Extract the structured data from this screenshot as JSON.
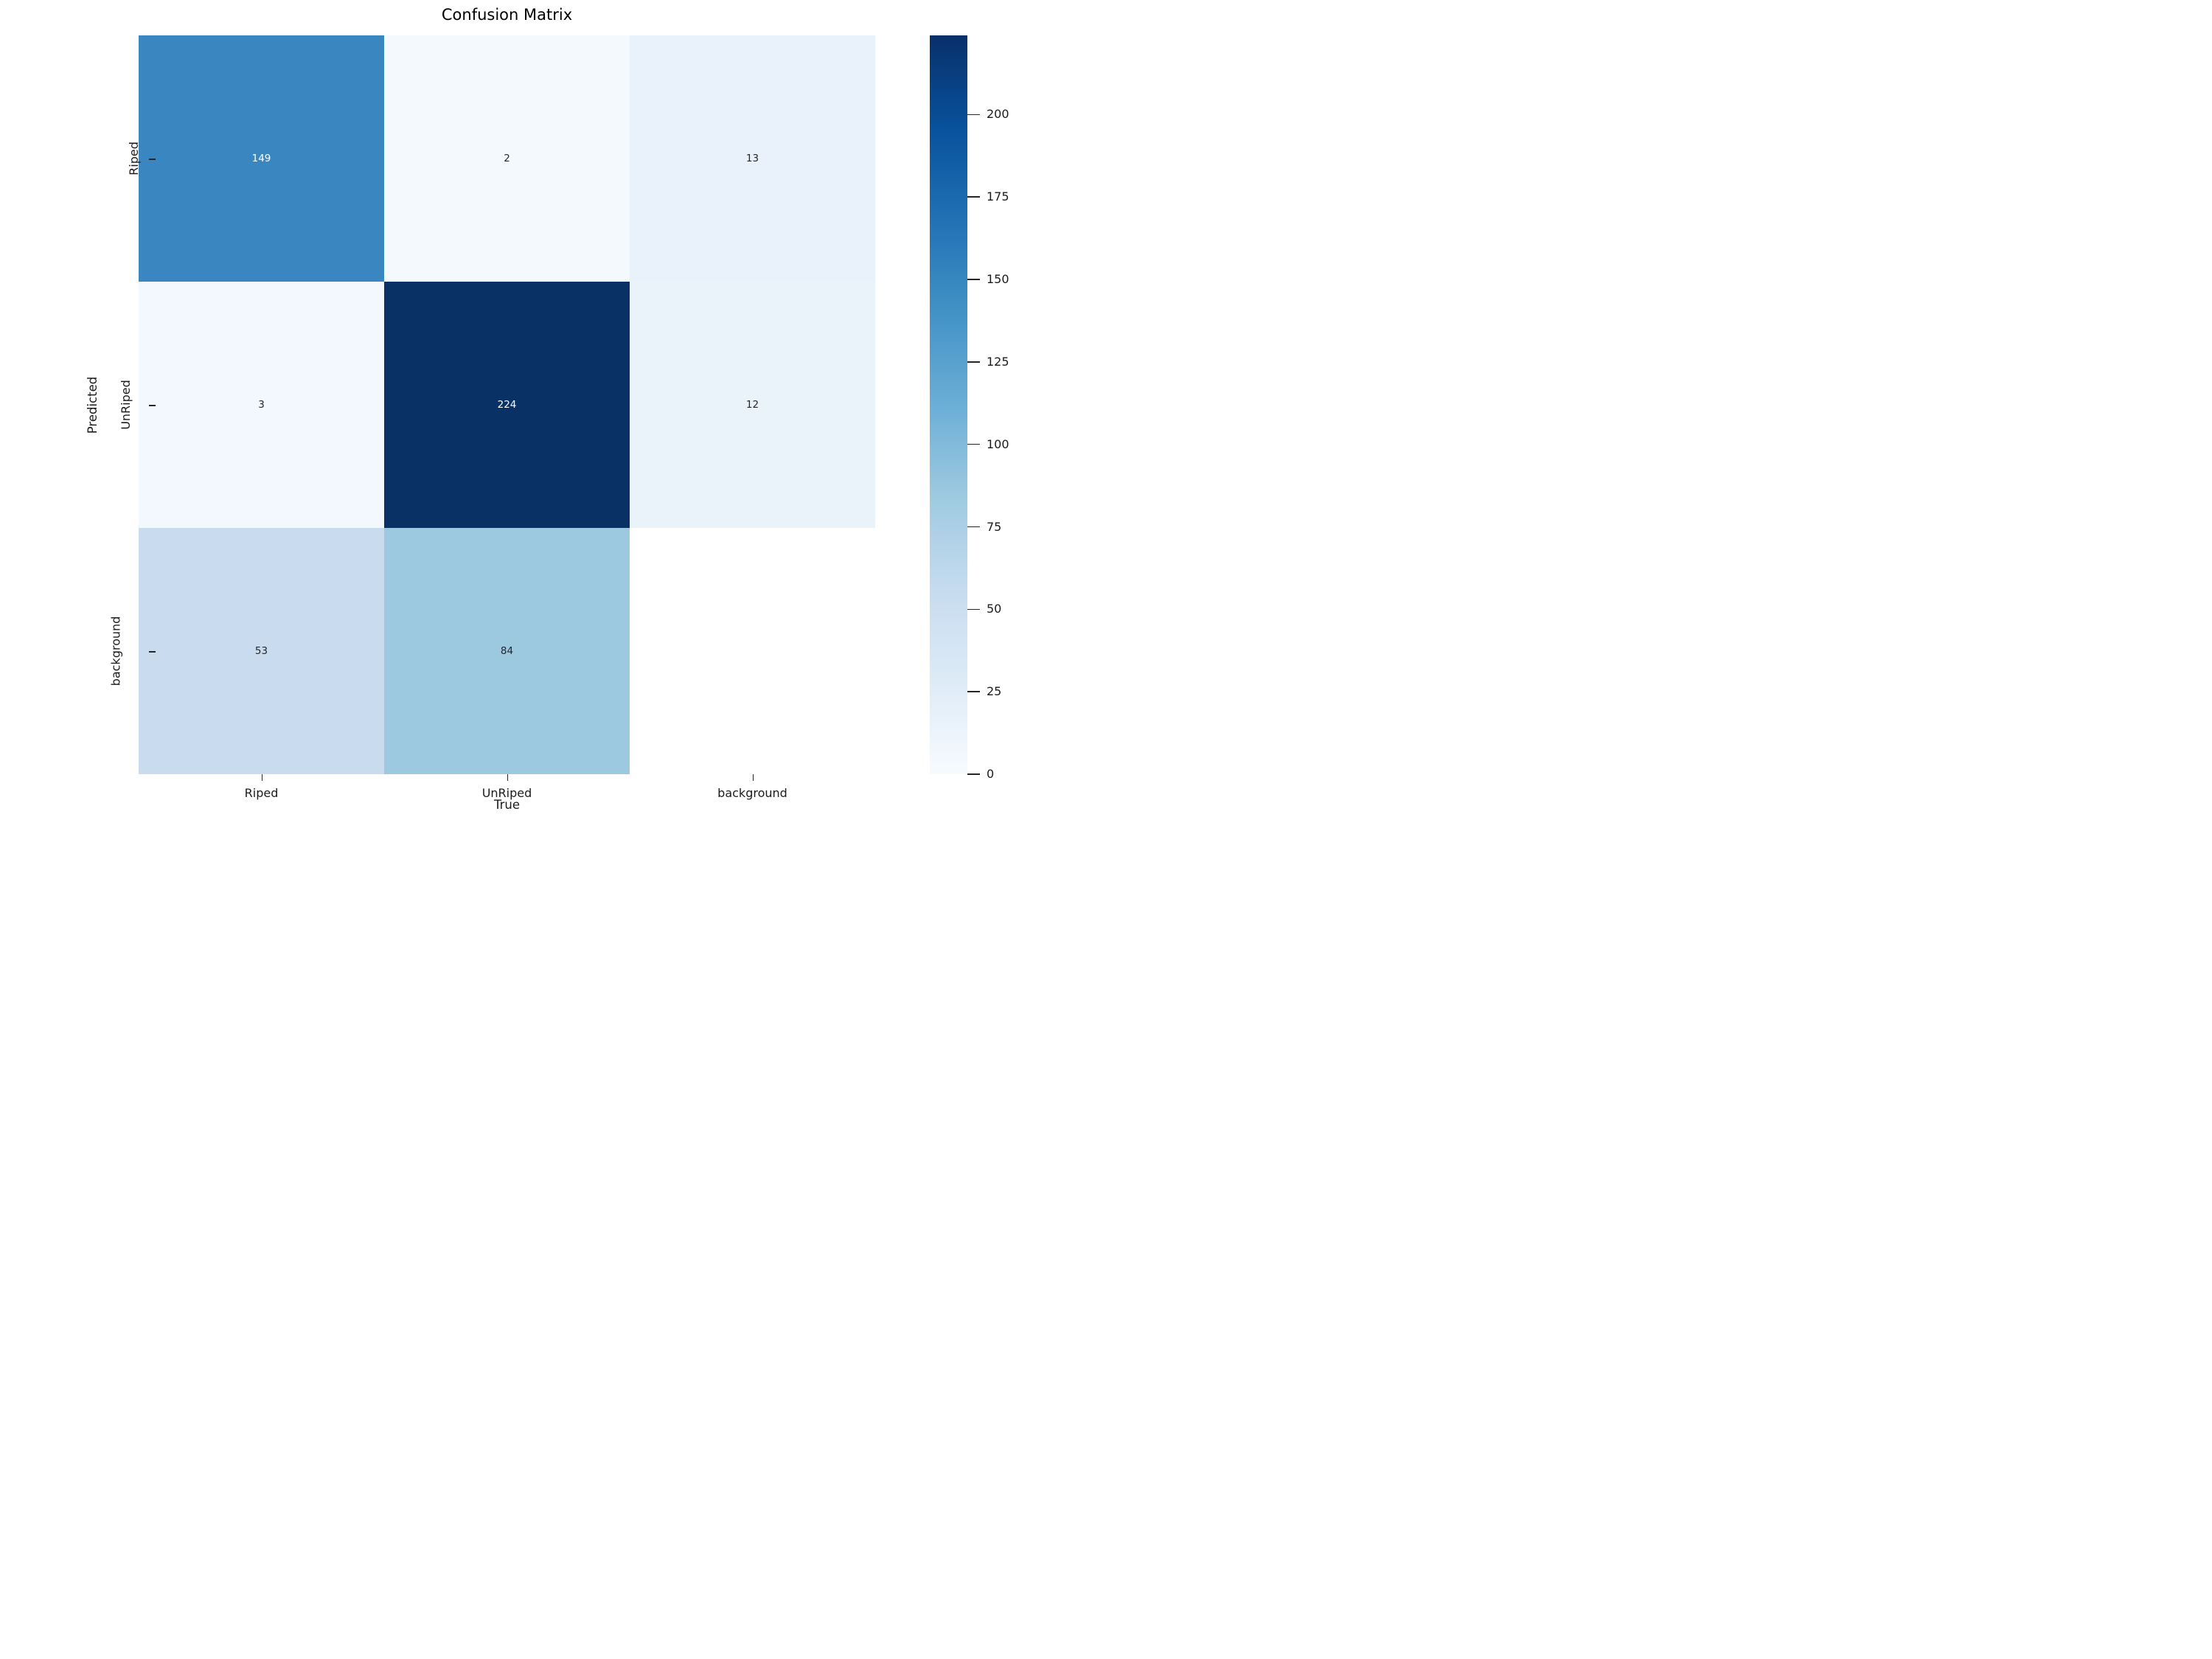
{
  "figure": {
    "title": "Confusion Matrix",
    "background_color": "#ffffff"
  },
  "axes": {
    "x_label": "True",
    "y_label": "Predicted",
    "x_tick_labels": [
      "Riped",
      "UnRiped",
      "background"
    ],
    "y_tick_labels": [
      "Riped",
      "UnRiped",
      "background"
    ]
  },
  "chart_data": {
    "type": "heatmap",
    "title": "Confusion Matrix",
    "xlabel": "True",
    "ylabel": "Predicted",
    "x_categories": [
      "Riped",
      "UnRiped",
      "background"
    ],
    "y_categories": [
      "Riped",
      "UnRiped",
      "background"
    ],
    "matrix": [
      [
        149,
        2,
        13
      ],
      [
        3,
        224,
        12
      ],
      [
        53,
        84,
        null
      ]
    ],
    "annotations": [
      [
        "149",
        "2",
        "13"
      ],
      [
        "3",
        "224",
        "12"
      ],
      [
        "53",
        "84",
        ""
      ]
    ],
    "colormap": "Blues",
    "vmin": 0,
    "vmax": 224,
    "colorbar_ticks": [
      0,
      25,
      50,
      75,
      100,
      125,
      150,
      175,
      200
    ],
    "legend_position": "right-colorbar",
    "grid": false,
    "note_blank_cell": "bottom-right background/background cell is blank white with no annotation"
  },
  "cell_styles": [
    [
      {
        "bg": "#3a86c0",
        "fg": "#ffffff"
      },
      {
        "bg": "#f4f9fe",
        "fg": "#262626"
      },
      {
        "bg": "#e9f1fa",
        "fg": "#262626"
      }
    ],
    [
      {
        "bg": "#f2f8fd",
        "fg": "#262626"
      },
      {
        "bg": "#0a3166",
        "fg": "#ffffff"
      },
      {
        "bg": "#eaf2fa",
        "fg": "#262626"
      }
    ],
    [
      {
        "bg": "#c9dcef",
        "fg": "#262626"
      },
      {
        "bg": "#9cc8e0",
        "fg": "#262626"
      },
      {
        "bg": "#ffffff",
        "fg": "#262626"
      }
    ]
  ],
  "colorbar": {
    "gradient_stops_bottom_to_top": [
      "#f7fbff",
      "#deebf7",
      "#c6dbef",
      "#9ecae1",
      "#6baed6",
      "#4292c6",
      "#2171b5",
      "#08519c",
      "#08306b"
    ],
    "tick_values": [
      0,
      25,
      50,
      75,
      100,
      125,
      150,
      175,
      200
    ],
    "tick_labels": [
      "0",
      "25",
      "50",
      "75",
      "100",
      "125",
      "150",
      "175",
      "200"
    ],
    "max_value": 224
  }
}
